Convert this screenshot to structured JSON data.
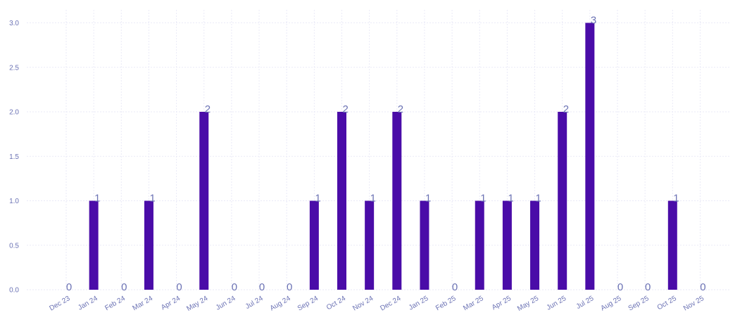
{
  "chart_data": {
    "type": "bar",
    "title": "",
    "xlabel": "",
    "ylabel": "",
    "categories": [
      "Dec 23",
      "Jan 24",
      "Feb 24",
      "Mar 24",
      "Apr 24",
      "May 24",
      "Jun 24",
      "Jul 24",
      "Aug 24",
      "Sep 24",
      "Oct 24",
      "Nov 24",
      "Dec 24",
      "Jan 25",
      "Feb 25",
      "Mar 25",
      "Apr 25",
      "May 25",
      "Jun 25",
      "Jul 25",
      "Aug 25",
      "Sep 25",
      "Oct 25",
      "Nov 25"
    ],
    "values": [
      0,
      1,
      0,
      1,
      0,
      2,
      0,
      0,
      0,
      1,
      2,
      1,
      2,
      1,
      0,
      1,
      1,
      1,
      2,
      3,
      0,
      0,
      1,
      0
    ],
    "data_labels": [
      "0",
      "1",
      "0",
      "1",
      "0",
      "2",
      "0",
      "0",
      "0",
      "1",
      "2",
      "1",
      "2",
      "1",
      "0",
      "1",
      "1",
      "1",
      "2",
      "3",
      "0",
      "0",
      "1",
      "0"
    ],
    "yticks": [
      "0.0",
      "0.5",
      "1.0",
      "1.5",
      "2.0",
      "2.5",
      "3.0"
    ],
    "ylim": [
      0,
      3
    ],
    "grid": true,
    "legend": "none",
    "colors": {
      "bar": "#4a0ca8",
      "tick_text": "#6b72b4",
      "data_label": "#6b72b4",
      "grid": "#eaeaf7"
    }
  }
}
